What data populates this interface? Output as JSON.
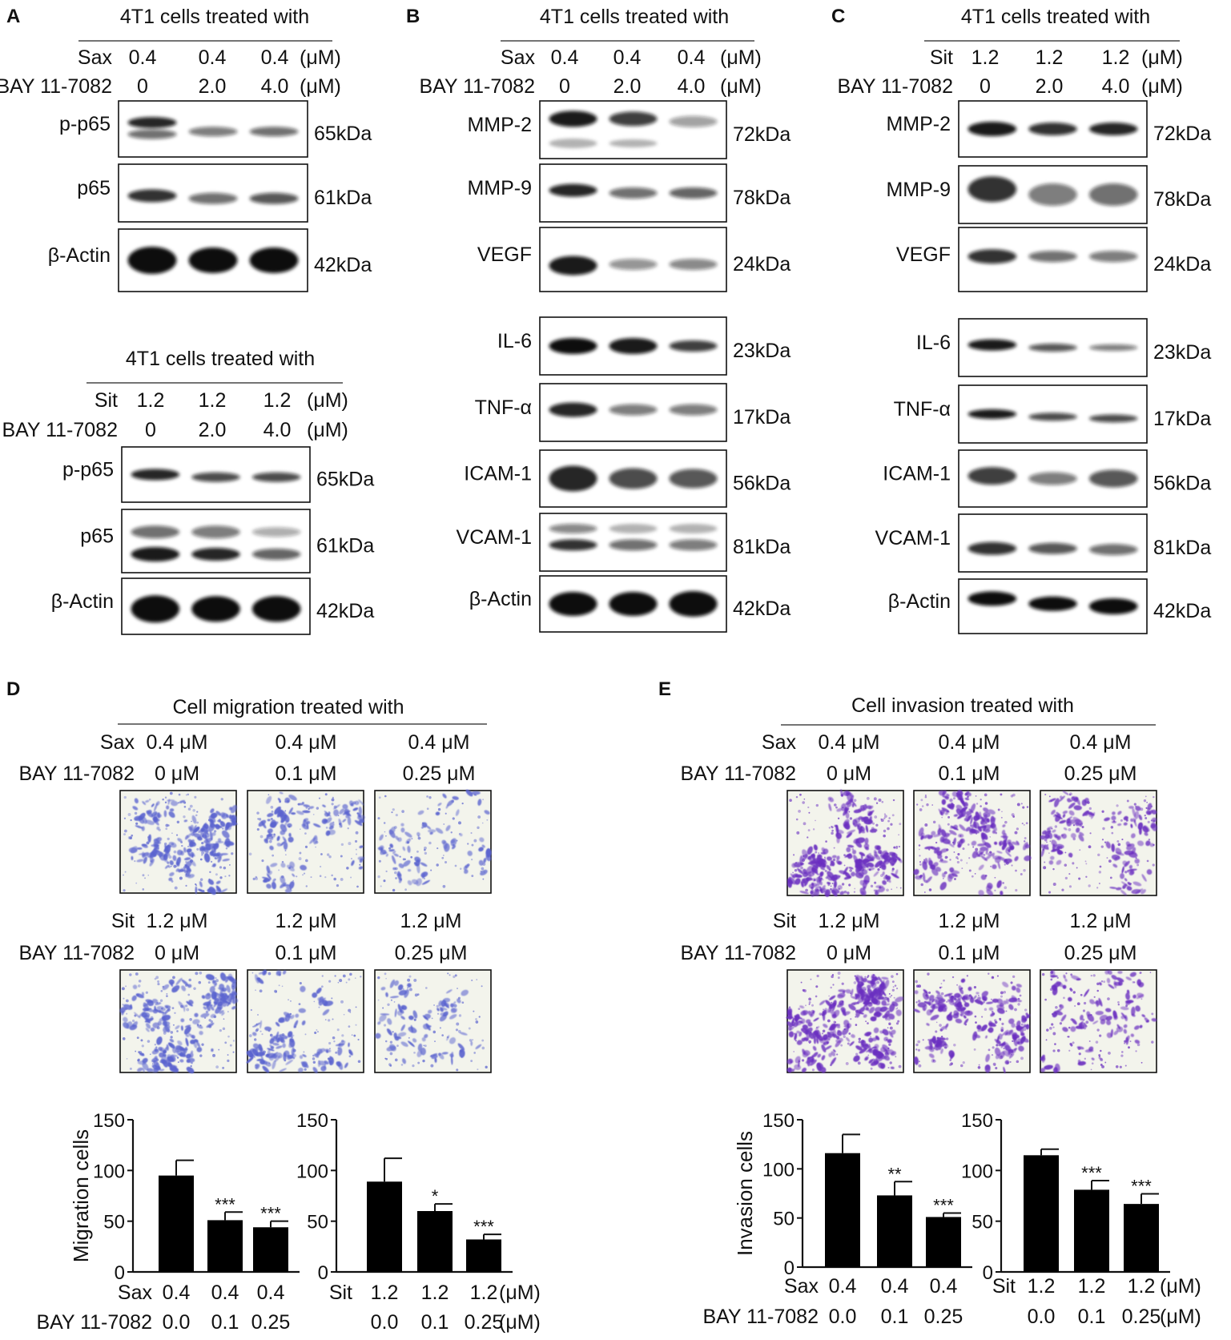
{
  "panels": {
    "A": {
      "letter": "A",
      "top": {
        "header": "4T1 cells treated with",
        "rows": [
          {
            "label": "Sax",
            "values": [
              "0.4",
              "0.4",
              "0.4"
            ],
            "unit": "(μM)"
          },
          {
            "label": "BAY 11-7082",
            "values": [
              "0",
              "2.0",
              "4.0"
            ],
            "unit": "(μM)"
          }
        ],
        "blots": [
          {
            "protein": "p-p65",
            "kda": "65kDa"
          },
          {
            "protein": "p65",
            "kda": "61kDa"
          },
          {
            "protein": "β-Actin",
            "kda": "42kDa"
          }
        ]
      },
      "bottom": {
        "header": "4T1 cells treated with",
        "rows": [
          {
            "label": "Sit",
            "values": [
              "1.2",
              "1.2",
              "1.2"
            ],
            "unit": "(μM)"
          },
          {
            "label": "BAY 11-7082",
            "values": [
              "0",
              "2.0",
              "4.0"
            ],
            "unit": "(μM)"
          }
        ],
        "blots": [
          {
            "protein": "p-p65",
            "kda": "65kDa"
          },
          {
            "protein": "p65",
            "kda": "61kDa"
          },
          {
            "protein": "β-Actin",
            "kda": "42kDa"
          }
        ]
      }
    },
    "B": {
      "letter": "B",
      "header": "4T1 cells treated with",
      "rows": [
        {
          "label": "Sax",
          "values": [
            "0.4",
            "0.4",
            "0.4"
          ],
          "unit": "(μM)"
        },
        {
          "label": "BAY 11-7082",
          "values": [
            "0",
            "2.0",
            "4.0"
          ],
          "unit": "(μM)"
        }
      ],
      "blots": [
        {
          "protein": "MMP-2",
          "kda": "72kDa"
        },
        {
          "protein": "MMP-9",
          "kda": "78kDa"
        },
        {
          "protein": "VEGF",
          "kda": "24kDa"
        },
        {
          "protein": "IL-6",
          "kda": "23kDa"
        },
        {
          "protein": "TNF-α",
          "kda": "17kDa"
        },
        {
          "protein": "ICAM-1",
          "kda": "56kDa"
        },
        {
          "protein": "VCAM-1",
          "kda": "81kDa"
        },
        {
          "protein": "β-Actin",
          "kda": "42kDa"
        }
      ]
    },
    "C": {
      "letter": "C",
      "header": "4T1 cells treated with",
      "rows": [
        {
          "label": "Sit",
          "values": [
            "1.2",
            "1.2",
            "1.2"
          ],
          "unit": "(μM)"
        },
        {
          "label": "BAY 11-7082",
          "values": [
            "0",
            "2.0",
            "4.0"
          ],
          "unit": "(μM)"
        }
      ],
      "blots": [
        {
          "protein": "MMP-2",
          "kda": "72kDa"
        },
        {
          "protein": "MMP-9",
          "kda": "78kDa"
        },
        {
          "protein": "VEGF",
          "kda": "24kDa"
        },
        {
          "protein": "IL-6",
          "kda": "23kDa"
        },
        {
          "protein": "TNF-α",
          "kda": "17kDa"
        },
        {
          "protein": "ICAM-1",
          "kda": "56kDa"
        },
        {
          "protein": "VCAM-1",
          "kda": "81kDa"
        },
        {
          "protein": "β-Actin",
          "kda": "42kDa"
        }
      ]
    },
    "D": {
      "letter": "D",
      "header": "Cell migration treated with",
      "set1": {
        "rows": [
          {
            "label": "Sax",
            "values": [
              "0.4 μM",
              "0.4 μM",
              "0.4 μM"
            ]
          },
          {
            "label": "BAY 11-7082",
            "values": [
              "0 μM",
              "0.1 μM",
              "0.25 μM"
            ]
          }
        ]
      },
      "set2": {
        "rows": [
          {
            "label": "Sit",
            "values": [
              "1.2 μM",
              "1.2 μM",
              "1.2 μM"
            ]
          },
          {
            "label": "BAY 11-7082",
            "values": [
              "0 μM",
              "0.1 μM",
              "0.25 μM"
            ]
          }
        ]
      },
      "xrows_left": [
        {
          "label": "Sax",
          "values": [
            "0.4",
            "0.4",
            "0.4"
          ],
          "unit": ""
        },
        {
          "label": "BAY 11-7082",
          "values": [
            "0.0",
            "0.1",
            "0.25"
          ],
          "unit": ""
        }
      ],
      "xrows_right": [
        {
          "label": "Sit",
          "values": [
            "1.2",
            "1.2",
            "1.2"
          ],
          "unit": "(μM)"
        },
        {
          "label": "",
          "values": [
            "0.0",
            "0.1",
            "0.25"
          ],
          "unit": "(μM)"
        }
      ]
    },
    "E": {
      "letter": "E",
      "header": "Cell invasion treated with",
      "set1": {
        "rows": [
          {
            "label": "Sax",
            "values": [
              "0.4 μM",
              "0.4 μM",
              "0.4 μM"
            ]
          },
          {
            "label": "BAY 11-7082",
            "values": [
              "0 μM",
              "0.1 μM",
              "0.25 μM"
            ]
          }
        ]
      },
      "set2": {
        "rows": [
          {
            "label": "Sit",
            "values": [
              "1.2 μM",
              "1.2 μM",
              "1.2 μM"
            ]
          },
          {
            "label": "BAY 11-7082",
            "values": [
              "0 μM",
              "0.1 μM",
              "0.25 μM"
            ]
          }
        ]
      },
      "xrows_left": [
        {
          "label": "Sax",
          "values": [
            "0.4",
            "0.4",
            "0.4"
          ],
          "unit": ""
        },
        {
          "label": "BAY 11-7082",
          "values": [
            "0.0",
            "0.1",
            "0.25"
          ],
          "unit": ""
        }
      ],
      "xrows_right": [
        {
          "label": "Sit",
          "values": [
            "1.2",
            "1.2",
            "1.2"
          ],
          "unit": "(μM)"
        },
        {
          "label": "",
          "values": [
            "0.0",
            "0.1",
            "0.25"
          ],
          "unit": "(μM)"
        }
      ]
    }
  },
  "colors": {
    "bar": "#000000",
    "stain_migration": "#5a63cf",
    "stain_invasion": "#6a2fc0",
    "field_background": "#f3f4ec"
  },
  "chart_data": [
    {
      "panel": "D",
      "type": "bar",
      "ylabel": "Migration cells",
      "categories": [
        "Sax 0.4 + BAY 0.0",
        "Sax 0.4 + BAY 0.1",
        "Sax 0.4 + BAY 0.25"
      ],
      "values": [
        95,
        51,
        44
      ],
      "errors": [
        15,
        8,
        6
      ],
      "significance": [
        "",
        "***",
        "***"
      ],
      "ylim": [
        0,
        150
      ],
      "yticks": [
        0,
        50,
        100,
        150
      ]
    },
    {
      "panel": "D",
      "type": "bar",
      "ylabel": "",
      "categories": [
        "Sit 1.2 + BAY 0.0",
        "Sit 1.2 + BAY 0.1",
        "Sit 1.2 + BAY 0.25"
      ],
      "values": [
        89,
        60,
        32
      ],
      "errors": [
        23,
        7,
        5
      ],
      "significance": [
        "",
        "*",
        "***"
      ],
      "ylim": [
        0,
        150
      ],
      "yticks": [
        0,
        50,
        100,
        150
      ]
    },
    {
      "panel": "E",
      "type": "bar",
      "ylabel": "Invasion cells",
      "categories": [
        "Sax 0.4 + BAY 0.0",
        "Sax 0.4 + BAY 0.1",
        "Sax 0.4 + BAY 0.25"
      ],
      "values": [
        116,
        73,
        51
      ],
      "errors": [
        19,
        14,
        4
      ],
      "significance": [
        "",
        "**",
        "***"
      ],
      "ylim": [
        0,
        150
      ],
      "yticks": [
        0,
        50,
        100,
        150
      ]
    },
    {
      "panel": "E",
      "type": "bar",
      "ylabel": "",
      "categories": [
        "Sit 1.2 + BAY 0.0",
        "Sit 1.2 + BAY 0.1",
        "Sit 1.2 + BAY 0.25"
      ],
      "values": [
        115,
        81,
        67
      ],
      "errors": [
        6,
        9,
        10
      ],
      "significance": [
        "",
        "***",
        "***"
      ],
      "ylim": [
        0,
        150
      ],
      "yticks": [
        0,
        50,
        100,
        150
      ]
    }
  ]
}
